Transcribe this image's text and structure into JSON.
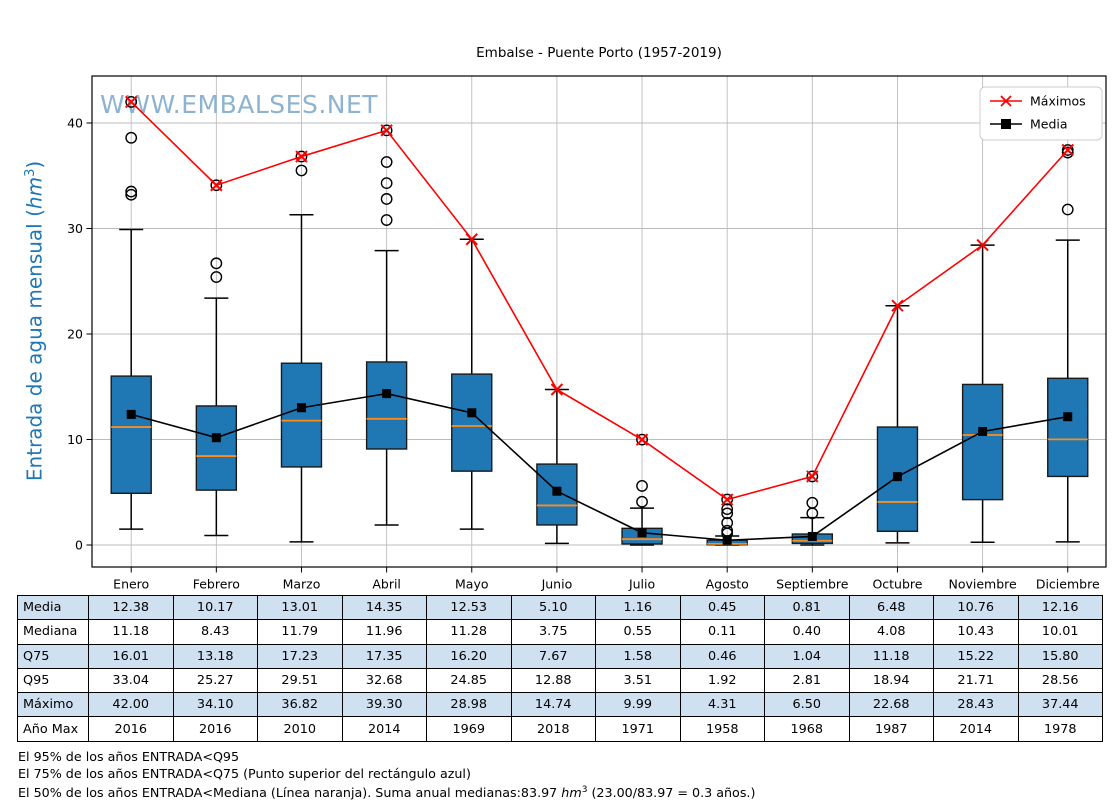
{
  "chart_data": {
    "type": "boxplot",
    "title": "Embalse - Puente Porto (1957-2019)",
    "watermark": "WWW.EMBALSES.NET",
    "ylabel": "Entrada de agua mensual (hm³)",
    "ylabel_parts": {
      "pre": "Entrada de agua mensual (",
      "math": "hm",
      "sup": "3",
      "post": ")"
    },
    "yticks": [
      0,
      10,
      20,
      30,
      40
    ],
    "ylim": [
      -2,
      44
    ],
    "grid": true,
    "legend_position": "upper right",
    "months": [
      "Enero",
      "Febrero",
      "Marzo",
      "Abril",
      "Mayo",
      "Junio",
      "Julio",
      "Agosto",
      "Septiembre",
      "Octubre",
      "Noviembre",
      "Diciembre"
    ],
    "boxes": [
      {
        "q1": 4.9,
        "median": 11.18,
        "q3": 16.01,
        "whisker_low": 1.5,
        "whisker_high": 29.9,
        "outliers": [
          33.2,
          33.5,
          38.6,
          42.0
        ]
      },
      {
        "q1": 5.2,
        "median": 8.43,
        "q3": 13.18,
        "whisker_low": 0.9,
        "whisker_high": 23.4,
        "outliers": [
          25.4,
          26.7,
          34.1
        ]
      },
      {
        "q1": 7.4,
        "median": 11.79,
        "q3": 17.23,
        "whisker_low": 0.3,
        "whisker_high": 31.3,
        "outliers": [
          35.5,
          36.82
        ]
      },
      {
        "q1": 9.1,
        "median": 11.96,
        "q3": 17.35,
        "whisker_low": 1.9,
        "whisker_high": 27.9,
        "outliers": [
          30.8,
          32.8,
          34.3,
          36.3,
          39.3
        ]
      },
      {
        "q1": 7.0,
        "median": 11.28,
        "q3": 16.2,
        "whisker_low": 1.5,
        "whisker_high": 28.98,
        "outliers": []
      },
      {
        "q1": 1.9,
        "median": 3.75,
        "q3": 7.67,
        "whisker_low": 0.15,
        "whisker_high": 14.74,
        "outliers": []
      },
      {
        "q1": 0.1,
        "median": 0.55,
        "q3": 1.58,
        "whisker_low": 0.0,
        "whisker_high": 3.5,
        "outliers": [
          4.1,
          5.6,
          9.99
        ]
      },
      {
        "q1": 0.02,
        "median": 0.11,
        "q3": 0.46,
        "whisker_low": 0.0,
        "whisker_high": 0.85,
        "outliers": [
          1.1,
          1.35,
          2.1,
          3.0,
          3.4,
          4.31
        ]
      },
      {
        "q1": 0.15,
        "median": 0.4,
        "q3": 1.04,
        "whisker_low": 0.0,
        "whisker_high": 2.6,
        "outliers": [
          3.0,
          4.0,
          6.5
        ]
      },
      {
        "q1": 1.3,
        "median": 4.08,
        "q3": 11.18,
        "whisker_low": 0.2,
        "whisker_high": 22.68,
        "outliers": []
      },
      {
        "q1": 4.3,
        "median": 10.43,
        "q3": 15.22,
        "whisker_low": 0.26,
        "whisker_high": 28.43,
        "outliers": []
      },
      {
        "q1": 6.5,
        "median": 10.01,
        "q3": 15.8,
        "whisker_low": 0.3,
        "whisker_high": 28.9,
        "outliers": [
          31.8,
          37.2,
          37.44
        ]
      }
    ],
    "series": [
      {
        "name": "Máximos",
        "color": "#ff0000",
        "marker": "x",
        "values": [
          42.0,
          34.1,
          36.82,
          39.3,
          28.98,
          14.74,
          9.99,
          4.31,
          6.5,
          22.68,
          28.43,
          37.44
        ]
      },
      {
        "name": "Media",
        "color": "#000000",
        "marker": "square",
        "values": [
          12.38,
          10.17,
          13.01,
          14.35,
          12.53,
          5.1,
          1.16,
          0.45,
          0.81,
          6.48,
          10.76,
          12.16
        ]
      }
    ],
    "colors": {
      "box_fill": "#1f77b4",
      "box_edge": "#1a1a1a",
      "median_line": "#ff8c1a",
      "maximos_line": "#ff0000",
      "media_line": "#000000",
      "ylabel": "#1f77b4",
      "watermark": "#7aa6c8",
      "grid": "#bcbcbc",
      "table_shaded_row": "#cfe0f1"
    }
  },
  "table": {
    "rows": [
      {
        "label": "Media",
        "values": [
          "12.38",
          "10.17",
          "13.01",
          "14.35",
          "12.53",
          "5.10",
          "1.16",
          "0.45",
          "0.81",
          "6.48",
          "10.76",
          "12.16"
        ]
      },
      {
        "label": "Mediana",
        "values": [
          "11.18",
          "8.43",
          "11.79",
          "11.96",
          "11.28",
          "3.75",
          "0.55",
          "0.11",
          "0.40",
          "4.08",
          "10.43",
          "10.01"
        ]
      },
      {
        "label": "Q75",
        "values": [
          "16.01",
          "13.18",
          "17.23",
          "17.35",
          "16.20",
          "7.67",
          "1.58",
          "0.46",
          "1.04",
          "11.18",
          "15.22",
          "15.80"
        ]
      },
      {
        "label": "Q95",
        "values": [
          "33.04",
          "25.27",
          "29.51",
          "32.68",
          "24.85",
          "12.88",
          "3.51",
          "1.92",
          "2.81",
          "18.94",
          "21.71",
          "28.56"
        ]
      },
      {
        "label": "Máximo",
        "values": [
          "42.00",
          "34.10",
          "36.82",
          "39.30",
          "28.98",
          "14.74",
          "9.99",
          "4.31",
          "6.50",
          "22.68",
          "28.43",
          "37.44"
        ]
      },
      {
        "label": "Año Max",
        "values": [
          "2016",
          "2016",
          "2010",
          "2014",
          "1969",
          "2018",
          "1971",
          "1958",
          "1968",
          "1987",
          "2014",
          "1978"
        ]
      }
    ]
  },
  "notes": {
    "line1": "El 95% de los años ENTRADA<Q95",
    "line2": "El 75% de los años ENTRADA<Q75 (Punto superior del rectángulo azul)",
    "line3_pre": "El 50% de los años ENTRADA<Mediana (Línea naranja). Suma anual medianas:83.97 ",
    "line3_math": "hm",
    "line3_sup": "3",
    "line3_post": " (23.00/83.97 = 0.3 años.)"
  }
}
